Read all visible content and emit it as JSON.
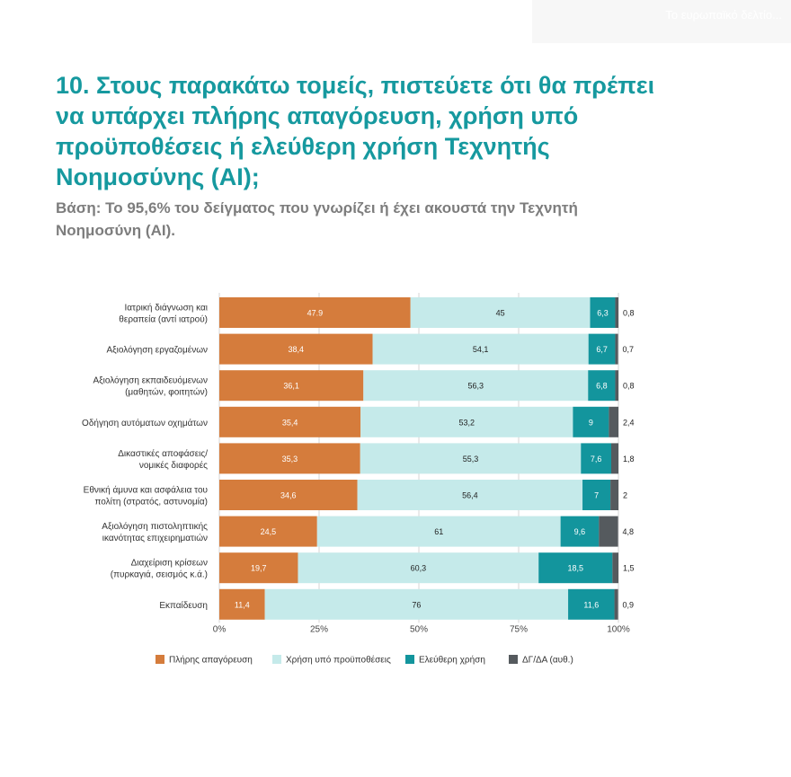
{
  "header": {
    "faded_text": "Το ευρωπαϊκό δελτίο..."
  },
  "title": "10. Στους παρακάτω τομείς, πιστεύετε ότι θα πρέπει να υπάρχει πλήρης απαγόρευση, χρήση υπό προϋποθέσεις ή ελεύθερη χρήση Τεχνητής Νοημοσύνης (AI);",
  "subtitle": "Βάση: Το 95,6% του δείγματος που γνωρίζει ή έχει ακουστά την Τεχνητή Νοημοσύνη (AI).",
  "chart_data": {
    "type": "bar",
    "orientation": "horizontal",
    "stacked": true,
    "categories": [
      [
        "Ιατρική διάγνωση και",
        "θεραπεία (αντί ιατρού)"
      ],
      [
        "Αξιολόγηση εργαζομένων"
      ],
      [
        "Αξιολόγηση εκπαιδευόμενων",
        "(μαθητών, φοιτητών)"
      ],
      [
        "Οδήγηση αυτόματων οχημάτων"
      ],
      [
        "Δικαστικές αποφάσεις/",
        "νομικές διαφορές"
      ],
      [
        "Εθνική άμυνα και ασφάλεια του",
        "πολίτη (στρατός, αστυνομία)"
      ],
      [
        "Αξιολόγηση πιστοληπτικής",
        "ικανότητας επιχειρηματιών"
      ],
      [
        "Διαχείριση κρίσεων",
        "(πυρκαγιά, σεισμός κ.ά.)"
      ],
      [
        "Εκπαίδευση"
      ]
    ],
    "series": [
      {
        "name": "Πλήρης απαγόρευση",
        "color": "#d57c3c",
        "label_color": "#ffffff",
        "values": [
          47.9,
          38.4,
          36.1,
          35.4,
          35.3,
          34.6,
          24.5,
          19.7,
          11.4
        ],
        "labels": [
          "47.9",
          "38,4",
          "36,1",
          "35,4",
          "35,3",
          "34,6",
          "24,5",
          "19,7",
          "11,4"
        ]
      },
      {
        "name": "Χρήση υπό προϋποθέσεις",
        "color": "#c5eaea",
        "label_color": "#222222",
        "values": [
          45,
          54.1,
          56.3,
          53.2,
          55.3,
          56.4,
          61,
          60.3,
          76
        ],
        "labels": [
          "45",
          "54,1",
          "56,3",
          "53,2",
          "55,3",
          "56,4",
          "61",
          "60,3",
          "76"
        ]
      },
      {
        "name": "Ελεύθερη χρήση",
        "color": "#13959d",
        "label_color": "#ffffff",
        "values": [
          6.3,
          6.7,
          6.8,
          9,
          7.6,
          7,
          9.6,
          18.5,
          11.6
        ],
        "labels": [
          "6,3",
          "6,7",
          "6,8",
          "9",
          "7,6",
          "7",
          "9,6",
          "18,5",
          "11,6"
        ]
      },
      {
        "name": "ΔΓ/ΔΑ (αυθ.)",
        "color": "#555a5e",
        "label_color": "#222222",
        "values": [
          0.8,
          0.7,
          0.8,
          2.4,
          1.8,
          2,
          4.8,
          1.5,
          0.9
        ],
        "labels": [
          "0,8",
          "0,7",
          "0,8",
          "2,4",
          "1,8",
          "2",
          "4,8",
          "1,5",
          "0,9"
        ]
      }
    ],
    "xlim": [
      0,
      100
    ],
    "xticks": [
      "0%",
      "25%",
      "50%",
      "75%",
      "100%"
    ],
    "grid": true,
    "legend_position": "bottom"
  }
}
